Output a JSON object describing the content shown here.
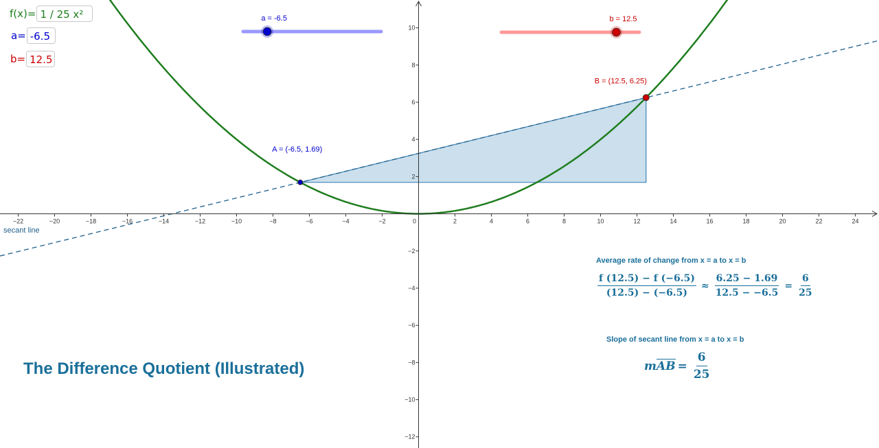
{
  "colors": {
    "parabola": "#1e7d1e",
    "secant": "#1f5f8b",
    "triangle_fill": "#a9c9df",
    "triangle_stroke": "#3d84b8",
    "a_color": "#0000cc",
    "a_track": "#9999ff",
    "b_color": "#cc0000",
    "b_track": "#ff9999",
    "axis": "#333333",
    "text_teal": "#1a6f9a"
  },
  "inputs": {
    "f_label": "f(x)=",
    "f_value": "1 / 25 x²",
    "a_label": "a=",
    "a_value": "-6.5",
    "b_label": "b=",
    "b_value": "12.5"
  },
  "sliders": {
    "a": {
      "label": "a = -6.5",
      "value": -6.5,
      "min": -10,
      "max": 10
    },
    "b": {
      "label": "b = 12.5",
      "value": 12.5,
      "min": 0,
      "max": 15
    }
  },
  "graph": {
    "x_range": [
      -23,
      25.3
    ],
    "y_range": [
      -12.6,
      11.5
    ],
    "x_ticks": [
      "−22",
      "−20",
      "−18",
      "−16",
      "−14",
      "−12",
      "−10",
      "−8",
      "−6",
      "−4",
      "−2",
      "0",
      "2",
      "4",
      "6",
      "8",
      "10",
      "12",
      "14",
      "16",
      "18",
      "20",
      "22",
      "24"
    ],
    "y_ticks": [
      "−12",
      "−10",
      "−8",
      "−6",
      "−4",
      "−2",
      "2",
      "4",
      "6",
      "8",
      "10"
    ],
    "function_coefficient": 0.04,
    "point_A": {
      "label": "A = (-6.5, 1.69)",
      "x": -6.5,
      "y": 1.69
    },
    "point_B": {
      "label": "B = (12.5, 6.25)",
      "x": 12.5,
      "y": 6.25
    },
    "secant_label": "secant line"
  },
  "title": "The Difference Quotient (Illustrated)",
  "avg_rate": {
    "heading": "Average rate of change from x = a to x = b",
    "num1": "f (12.5) − f (−6.5)",
    "den1": "(12.5) − (−6.5)",
    "approx": "≈",
    "num2": "6.25 − 1.69",
    "den2": "12.5 − −6.5",
    "eq": "=",
    "num3": "6",
    "den3": "25"
  },
  "slope": {
    "heading": "Slope of secant line from x = a to x = b",
    "m": "m",
    "seg": "AB",
    "eq": "=",
    "num": "6",
    "den": "25"
  }
}
